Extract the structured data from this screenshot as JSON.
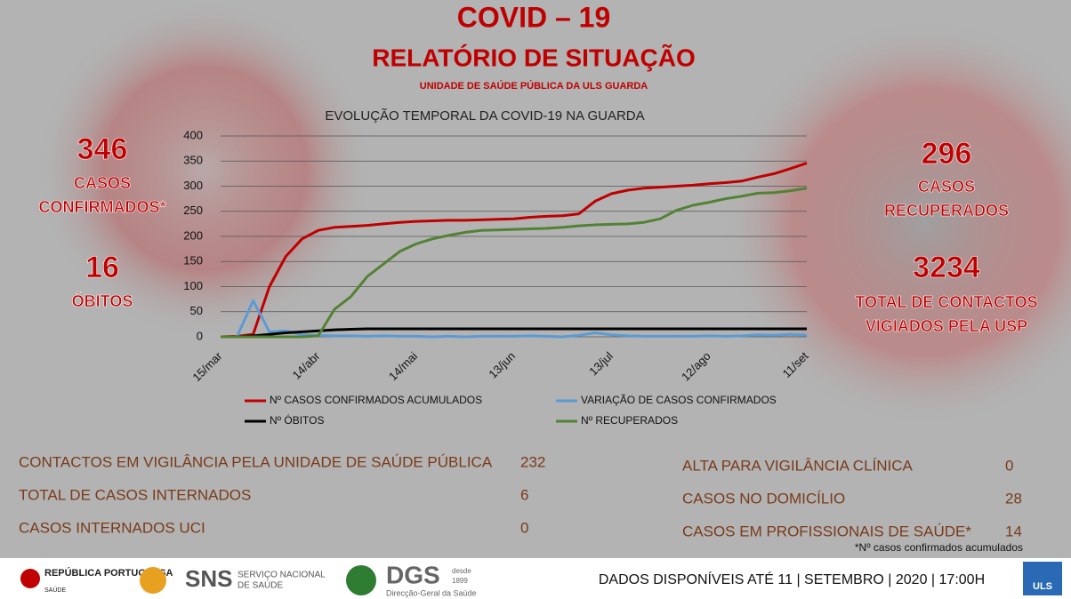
{
  "header": {
    "title": "COVID – 19",
    "subtitle": "RELATÓRIO DE SITUAÇÃO",
    "unit": "UNIDADE DE SAÚDE PÚBLICA DA ULS GUARDA"
  },
  "left_stats": [
    {
      "value": 346,
      "label": [
        "CASOS",
        "CONFIRMADOS*"
      ]
    },
    {
      "value": 16,
      "label": [
        "ÓBITOS"
      ]
    }
  ],
  "right_stats": [
    {
      "value": 296,
      "label": [
        "CASOS",
        "RECUPERADOS"
      ]
    },
    {
      "value": 3234,
      "label": [
        "TOTAL DE CONTACTOS",
        "VIGIADOS PELA USP"
      ]
    }
  ],
  "chart_data": {
    "type": "line",
    "title": "EVOLUÇÃO TEMPORAL DA COVID-19 NA GUARDA",
    "categories": [
      "15/mar",
      null,
      null,
      null,
      null,
      null,
      "14/abr",
      null,
      null,
      null,
      null,
      null,
      "14/mai",
      null,
      null,
      null,
      null,
      null,
      "13/jun",
      null,
      null,
      null,
      null,
      null,
      "13/jul",
      null,
      null,
      null,
      null,
      null,
      "12/ago",
      null,
      null,
      null,
      null,
      null,
      "11/set"
    ],
    "ylim": [
      0,
      400
    ],
    "yticks": [
      0,
      50,
      100,
      150,
      200,
      250,
      300,
      350,
      400
    ],
    "grid": true,
    "series": [
      {
        "name": "Nº CASOS CONFIRMADOS ACUMULADOS",
        "color": "#c00000",
        "values": [
          0,
          1,
          5,
          100,
          160,
          195,
          212,
          218,
          220,
          222,
          225,
          228,
          230,
          231,
          232,
          232,
          233,
          234,
          235,
          238,
          240,
          241,
          245,
          270,
          285,
          292,
          296,
          298,
          300,
          302,
          305,
          307,
          310,
          318,
          325,
          335,
          346
        ]
      },
      {
        "name": "VARIAÇÃO DE CASOS CONFIRMADOS",
        "color": "#5b9bd5",
        "values": [
          0,
          0,
          72,
          10,
          12,
          4,
          3,
          2,
          2,
          1,
          2,
          1,
          1,
          0,
          1,
          0,
          1,
          1,
          1,
          2,
          1,
          0,
          3,
          8,
          4,
          2,
          1,
          1,
          1,
          1,
          2,
          1,
          2,
          4,
          3,
          5,
          3
        ]
      },
      {
        "name": "Nº ÓBITOS",
        "color": "#000000",
        "values": [
          0,
          0,
          2,
          5,
          8,
          10,
          12,
          14,
          15,
          16,
          16,
          16,
          16,
          16,
          16,
          16,
          16,
          16,
          16,
          16,
          16,
          16,
          16,
          16,
          16,
          16,
          16,
          16,
          16,
          16,
          16,
          16,
          16,
          16,
          16,
          16,
          16
        ]
      },
      {
        "name": "Nº RECUPERADOS",
        "color": "#548235",
        "values": [
          0,
          0,
          0,
          0,
          0,
          0,
          2,
          55,
          80,
          120,
          145,
          170,
          185,
          195,
          202,
          208,
          212,
          213,
          214,
          215,
          216,
          218,
          221,
          223,
          224,
          225,
          228,
          235,
          252,
          262,
          268,
          275,
          280,
          286,
          287,
          291,
          296
        ]
      }
    ]
  },
  "table_left": [
    [
      "CONTACTOS EM VIGILÂNCIA PELA UNIDADE DE SAÚDE PÚBLICA",
      232
    ],
    [
      "TOTAL DE CASOS INTERNADOS",
      6
    ],
    [
      "CASOS INTERNADOS UCI",
      0
    ]
  ],
  "table_right": [
    [
      "ALTA PARA VIGILÂNCIA CLÍNICA",
      0
    ],
    [
      "CASOS NO DOMICÍLIO",
      28
    ],
    [
      "CASOS EM PROFISSIONAIS DE SAÚDE*",
      14
    ]
  ],
  "note": "*Nº casos confirmados acumulados",
  "footer": {
    "logo1": "REPÚBLICA PORTUGUESA",
    "logo1_sub": "SAÚDE",
    "logo2": "SNS",
    "logo2_sub": [
      "SERVIÇO NACIONAL",
      "DE SAÚDE"
    ],
    "logo3": "DGS",
    "logo3_since": [
      "desde",
      "1899"
    ],
    "logo3_sub": "Direcção-Geral da Saúde",
    "logo4": "ULS",
    "date": "DADOS DISPONÍVEIS ATÉ 11 | SETEMBRO | 2020 | 17:00H"
  }
}
